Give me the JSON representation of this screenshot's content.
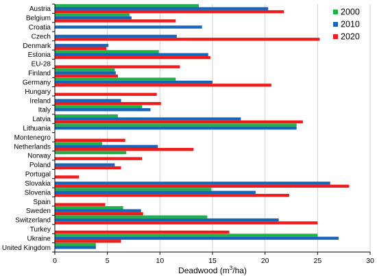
{
  "chart_data": {
    "type": "bar",
    "orientation": "horizontal",
    "xlabel": "Deadwood (m³/ha)",
    "xlabel_parts": {
      "prefix": "Deadwood (m",
      "sup": "3",
      "suffix": "/ha)"
    },
    "ylabel": "",
    "xlim": [
      0,
      30
    ],
    "xticks": [
      0,
      5,
      10,
      15,
      20,
      25,
      30
    ],
    "grid": "vertical",
    "legend_position": "top-right",
    "categories": [
      "Austria",
      "Belgium",
      "Croatia",
      "Czech",
      "Denmark",
      "Estonia",
      "EU-28",
      "Finland",
      "Germany",
      "Hungary",
      "Ireland",
      "Italy",
      "Latvia",
      "Lithuania",
      "Montenegro",
      "Netherlands",
      "Norway",
      "Poland",
      "Portugal",
      "Slovakia",
      "Slovenia",
      "Spain",
      "Sweden",
      "Switzerland",
      "Turkey",
      "Ukraine",
      "United Kingdom"
    ],
    "series": [
      {
        "name": "2000",
        "color": "#22b04b",
        "values": [
          13.7,
          7.1,
          null,
          null,
          null,
          9.9,
          null,
          5.7,
          11.5,
          null,
          null,
          8.3,
          6.0,
          23.0,
          null,
          4.5,
          6.8,
          null,
          null,
          null,
          14.9,
          null,
          6.5,
          14.5,
          null,
          25.0,
          3.9
        ]
      },
      {
        "name": "2010",
        "color": "#1565b8",
        "values": [
          20.3,
          7.3,
          14.0,
          11.6,
          5.1,
          14.6,
          null,
          5.8,
          15.0,
          null,
          6.3,
          9.1,
          17.7,
          23.0,
          null,
          9.8,
          null,
          5.7,
          null,
          26.2,
          19.1,
          null,
          8.2,
          21.3,
          null,
          27.0,
          3.9
        ]
      },
      {
        "name": "2020",
        "color": "#f01c1c",
        "values": [
          21.8,
          11.5,
          null,
          25.2,
          4.9,
          14.8,
          11.9,
          6.0,
          20.6,
          9.7,
          10.1,
          null,
          23.6,
          null,
          6.7,
          13.2,
          8.3,
          6.3,
          2.3,
          28.0,
          22.3,
          4.8,
          8.4,
          25.0,
          16.6,
          6.3,
          null
        ]
      }
    ]
  }
}
